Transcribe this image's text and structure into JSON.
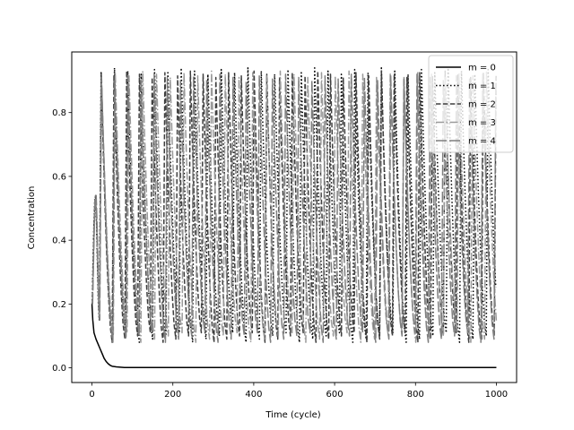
{
  "chart_data": {
    "type": "line",
    "title": "",
    "xlabel": "Time (cycle)",
    "ylabel": "Concentration",
    "xlim": [
      -50,
      1050
    ],
    "ylim": [
      -0.046,
      0.99
    ],
    "xticks": [
      0,
      200,
      400,
      600,
      800,
      1000
    ],
    "xtick_labels": [
      "0",
      "200",
      "400",
      "600",
      "800",
      "1000"
    ],
    "yticks": [
      0.0,
      0.2,
      0.4,
      0.6,
      0.8
    ],
    "ytick_labels": [
      "0.0",
      "0.2",
      "0.4",
      "0.6",
      "0.8"
    ],
    "grid": false,
    "legend_position": "top-right",
    "series": [
      {
        "name": "m = 0",
        "style": "solid",
        "color": "#000000",
        "x": [
          0,
          2,
          5,
          10,
          15,
          20,
          25,
          30,
          35,
          40,
          45,
          50,
          60,
          70,
          80,
          100,
          200,
          400,
          600,
          800,
          1000
        ],
        "y": [
          0.2,
          0.15,
          0.11,
          0.09,
          0.075,
          0.06,
          0.045,
          0.03,
          0.02,
          0.013,
          0.008,
          0.005,
          0.003,
          0.002,
          0.001,
          0.001,
          0.001,
          0.001,
          0.001,
          0.001,
          0.001
        ]
      },
      {
        "name": "m = 1",
        "style": "dotted",
        "color": "#000000",
        "period": 33,
        "phase": 32,
        "max": 0.94,
        "min": 0.08
      },
      {
        "name": "m = 2",
        "style": "dashed",
        "color": "#3f3f3f",
        "period": 31.5,
        "phase": 25,
        "max": 0.93,
        "min": 0.08
      },
      {
        "name": "m = 3",
        "style": "dashdot",
        "color": "#9a9a9a",
        "period": 34,
        "phase": 28,
        "max": 0.93,
        "min": 0.08
      },
      {
        "name": "m = 4",
        "style": "longdash",
        "color": "#7f7f7f",
        "period": 32.5,
        "phase": 22,
        "max": 0.92,
        "min": 0.08
      }
    ]
  }
}
